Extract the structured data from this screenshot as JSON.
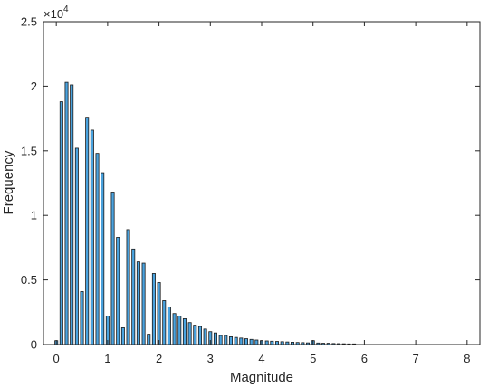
{
  "chart_data": {
    "type": "bar",
    "title": "",
    "xlabel": "Magnitude",
    "ylabel": "Frequency",
    "y_exponent_label": "×10",
    "y_exponent_power": "4",
    "xlim": [
      -0.25,
      8.25
    ],
    "ylim": [
      0,
      25000
    ],
    "xticks": [
      "0",
      "1",
      "2",
      "3",
      "4",
      "5",
      "6",
      "7",
      "8"
    ],
    "xtick_values": [
      0,
      1,
      2,
      3,
      4,
      5,
      6,
      7,
      8
    ],
    "yticks": [
      "0",
      "0.5",
      "1",
      "1.5",
      "2",
      "2.5"
    ],
    "ytick_values": [
      0,
      5000,
      10000,
      15000,
      20000,
      25000
    ],
    "grid": false,
    "box": true,
    "bar_color": "#4aa3df",
    "edge_color": "#1a1a1a",
    "bins": {
      "x": [
        0.0,
        0.1,
        0.2,
        0.3,
        0.4,
        0.5,
        0.6,
        0.7,
        0.8,
        0.9,
        1.0,
        1.1,
        1.2,
        1.3,
        1.4,
        1.5,
        1.6,
        1.7,
        1.8,
        1.9,
        2.0,
        2.1,
        2.2,
        2.3,
        2.4,
        2.5,
        2.6,
        2.7,
        2.8,
        2.9,
        3.0,
        3.1,
        3.2,
        3.3,
        3.4,
        3.5,
        3.6,
        3.7,
        3.8,
        3.9,
        4.0,
        4.1,
        4.2,
        4.3,
        4.4,
        4.5,
        4.6,
        4.7,
        4.8,
        4.9,
        5.0,
        5.1,
        5.2,
        5.3,
        5.4,
        5.5,
        5.6,
        5.7,
        5.8
      ],
      "values": [
        300,
        18800,
        20300,
        20100,
        15200,
        4100,
        17600,
        16600,
        14800,
        13300,
        2200,
        11800,
        8300,
        1300,
        8900,
        7400,
        6400,
        6300,
        800,
        5500,
        4800,
        3400,
        2900,
        2400,
        2200,
        2000,
        1700,
        1500,
        1400,
        1200,
        1000,
        900,
        700,
        700,
        600,
        550,
        500,
        450,
        400,
        350,
        300,
        280,
        260,
        240,
        220,
        200,
        180,
        160,
        150,
        130,
        300,
        120,
        100,
        100,
        80,
        70,
        60,
        50,
        50
      ]
    }
  }
}
